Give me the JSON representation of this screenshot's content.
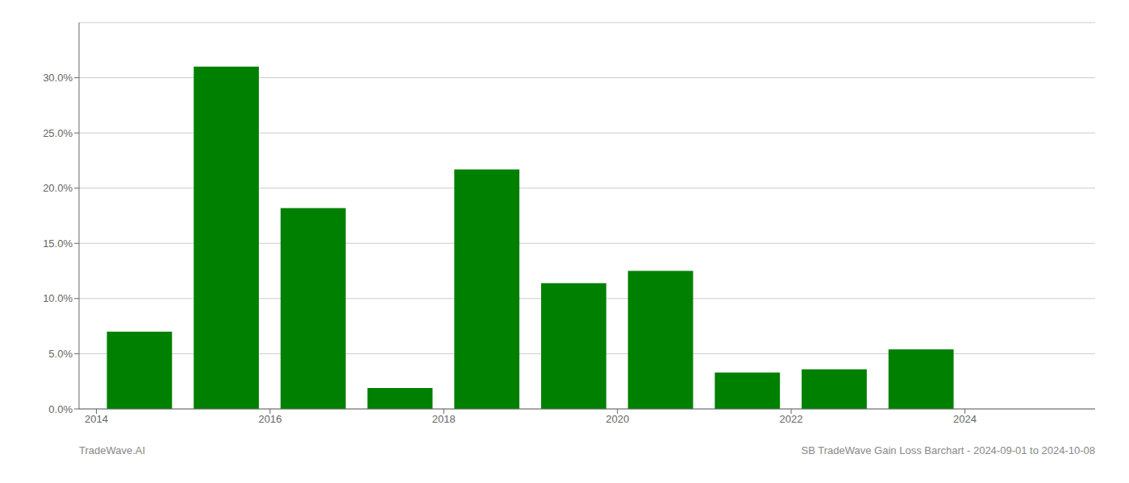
{
  "chart_data": {
    "type": "bar",
    "x": [
      2014,
      2015,
      2016,
      2017,
      2018,
      2019,
      2020,
      2021,
      2022,
      2023,
      2024
    ],
    "values": [
      0.07,
      0.31,
      0.182,
      0.019,
      0.217,
      0.114,
      0.125,
      0.033,
      0.036,
      0.054,
      0.0
    ],
    "color": "#008000",
    "xlim": [
      2013.3,
      2025.0
    ],
    "xticks": [
      {
        "value": 2013.5,
        "label": "2014"
      },
      {
        "value": 2015.5,
        "label": "2016"
      },
      {
        "value": 2017.5,
        "label": "2018"
      },
      {
        "value": 2019.5,
        "label": "2020"
      },
      {
        "value": 2021.5,
        "label": "2022"
      },
      {
        "value": 2023.5,
        "label": "2024"
      }
    ],
    "ylim": [
      0,
      0.35
    ],
    "yticks": [
      {
        "value": 0.0,
        "label": "0.0%"
      },
      {
        "value": 0.05,
        "label": "5.0%"
      },
      {
        "value": 0.1,
        "label": "10.0%"
      },
      {
        "value": 0.15,
        "label": "15.0%"
      },
      {
        "value": 0.2,
        "label": "20.0%"
      },
      {
        "value": 0.25,
        "label": "25.0%"
      },
      {
        "value": 0.3,
        "label": "30.0%"
      }
    ],
    "grid": true,
    "annotations": [
      "TradeWave.AI",
      "SB TradeWave Gain Loss Barchart - 2024-09-01 to 2024-10-08"
    ]
  }
}
